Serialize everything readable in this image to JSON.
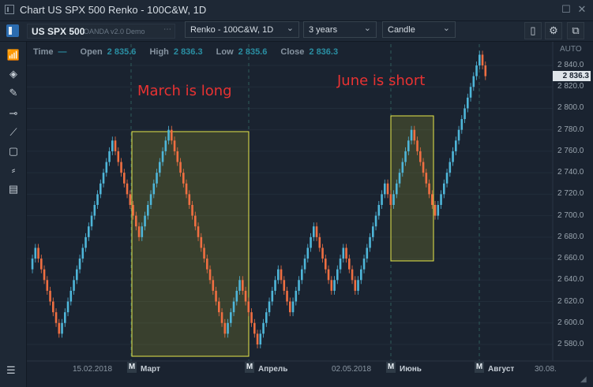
{
  "window": {
    "title": "Chart US SPX 500 Renko - 100C&W, 1D"
  },
  "toolbar": {
    "symbol": "US SPX 500",
    "provider": "OANDA v2.0 Demo",
    "chart_type": "Renko - 100C&W, 1D",
    "range": "3 years",
    "style": "Candle"
  },
  "infobar": {
    "time_label": "Time",
    "time_value": "—",
    "open_label": "Open",
    "open_value": "2 835.6",
    "high_label": "High",
    "high_value": "2 836.3",
    "low_label": "Low",
    "low_value": "2 835.6",
    "close_label": "Close",
    "close_value": "2 836.3"
  },
  "annotations": {
    "march": "March is long",
    "june": "June is short"
  },
  "axis": {
    "auto_label": "AUTO",
    "current_price": "2 836.3",
    "y_ticks": [
      "2 840.0",
      "2 820.0",
      "2 800.0",
      "2 780.0",
      "2 760.0",
      "2 740.0",
      "2 720.0",
      "2 700.0",
      "2 680.0",
      "2 660.0",
      "2 640.0",
      "2 620.0",
      "2 600.0",
      "2 580.0"
    ],
    "x_ticks": [
      "15.02.2018",
      "02.05.2018",
      "30.08."
    ],
    "month_badge": "M",
    "month_labels": [
      "Март",
      "Апрель",
      "Июнь",
      "Август"
    ]
  },
  "colors": {
    "up": "#4fb6d9",
    "down": "#ef6f42",
    "highlight_border": "#e8e84a",
    "annotation": "#e83232"
  },
  "chart_data": {
    "type": "renko",
    "series": [
      {
        "values": [
          2650,
          2660,
          2670,
          2660,
          2650,
          2640,
          2630,
          2620,
          2610,
          2600,
          2590,
          2600,
          2610,
          2620,
          2630,
          2640,
          2650,
          2660,
          2670,
          2680,
          2690,
          2700,
          2710,
          2720,
          2730,
          2740,
          2750,
          2760,
          2770,
          2760,
          2750,
          2740,
          2730,
          2720,
          2710,
          2700,
          2690,
          2680,
          2690,
          2700,
          2710,
          2720,
          2730,
          2740,
          2750,
          2760,
          2770,
          2780,
          2770,
          2760,
          2750,
          2740,
          2730,
          2720,
          2710,
          2700,
          2690,
          2680,
          2670,
          2660,
          2650,
          2640,
          2630,
          2620,
          2610,
          2600,
          2590,
          2600,
          2610,
          2620,
          2630,
          2640,
          2630,
          2620,
          2610,
          2600,
          2590,
          2580,
          2590,
          2600,
          2610,
          2620,
          2630,
          2640,
          2650,
          2640,
          2630,
          2620,
          2610,
          2620,
          2630,
          2640,
          2650,
          2660,
          2670,
          2680,
          2690,
          2680,
          2670,
          2660,
          2650,
          2640,
          2630,
          2640,
          2650,
          2660,
          2670,
          2660,
          2650,
          2640,
          2630,
          2640,
          2650,
          2660,
          2670,
          2680,
          2690,
          2700,
          2710,
          2720,
          2730,
          2720,
          2710,
          2720,
          2730,
          2740,
          2750,
          2760,
          2770,
          2780,
          2770,
          2760,
          2750,
          2740,
          2730,
          2720,
          2710,
          2700,
          2710,
          2720,
          2730,
          2740,
          2750,
          2760,
          2770,
          2780,
          2790,
          2800,
          2810,
          2820,
          2830,
          2840,
          2850,
          2840,
          2830
        ]
      }
    ],
    "ylim": [
      2570,
      2855
    ],
    "x_labels": [
      "15.02.2018",
      "Март",
      "Апрель",
      "02.05.2018",
      "Июнь",
      "Август",
      "30.08."
    ]
  }
}
